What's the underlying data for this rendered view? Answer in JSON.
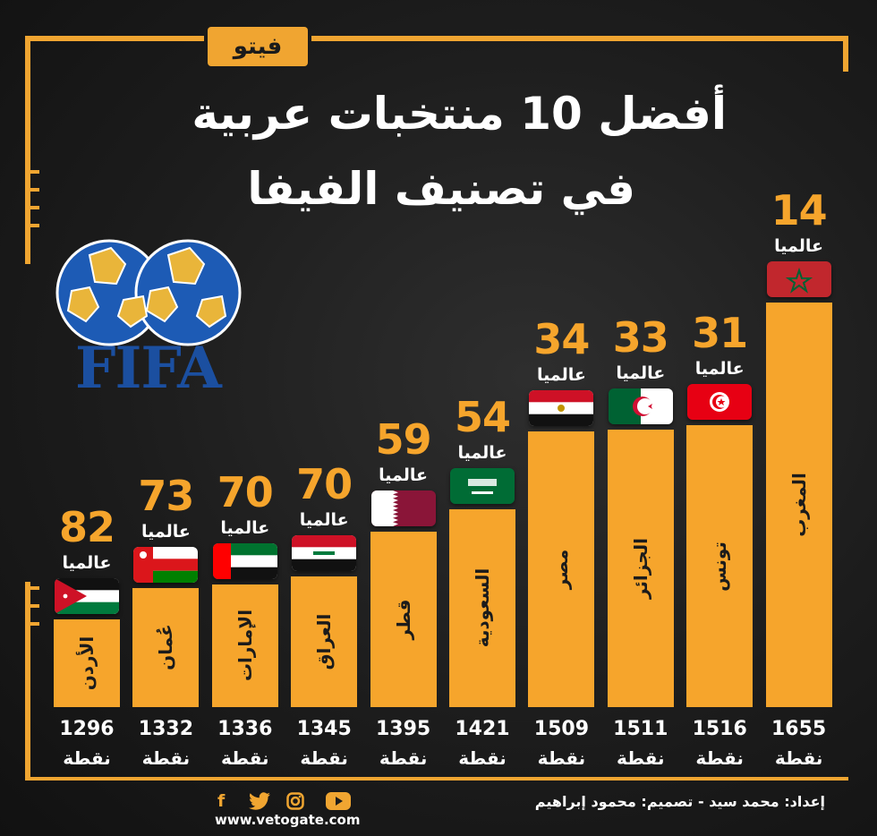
{
  "logo": "فيتو",
  "title": {
    "line1": "أفضل 10 منتخبات عربية",
    "line2": "في تصنيف الفيفا"
  },
  "fifa_logo_text": "FIFA",
  "rank_label": "عالميا",
  "points_unit": "نقطة",
  "credit": "إعداد: محمد سيد - تصميم: محمود إبراهيم",
  "website": "www.vetogate.com",
  "social_icons": [
    "facebook-icon",
    "twitter-icon",
    "instagram-icon",
    "youtube-icon"
  ],
  "colors": {
    "accent": "#f6a52c",
    "background": "#1c1c1c"
  },
  "chart_data": {
    "type": "bar",
    "categories": [
      "الأردن",
      "عُمان",
      "الإمارات",
      "العراق",
      "قطر",
      "السعودية",
      "مصر",
      "الجزائر",
      "تونس",
      "المغرب"
    ],
    "values": [
      1296,
      1332,
      1336,
      1345,
      1395,
      1421,
      1509,
      1511,
      1516,
      1655
    ],
    "ranks": [
      "82",
      "73",
      "70",
      "70",
      "59",
      "54",
      "34",
      "33",
      "31",
      "14"
    ],
    "flags": [
      "jordan",
      "oman",
      "uae",
      "iraq",
      "qatar",
      "saudi",
      "egypt",
      "algeria",
      "tunisia",
      "morocco"
    ],
    "title": "أفضل 10 منتخبات عربية في تصنيف الفيفا"
  }
}
